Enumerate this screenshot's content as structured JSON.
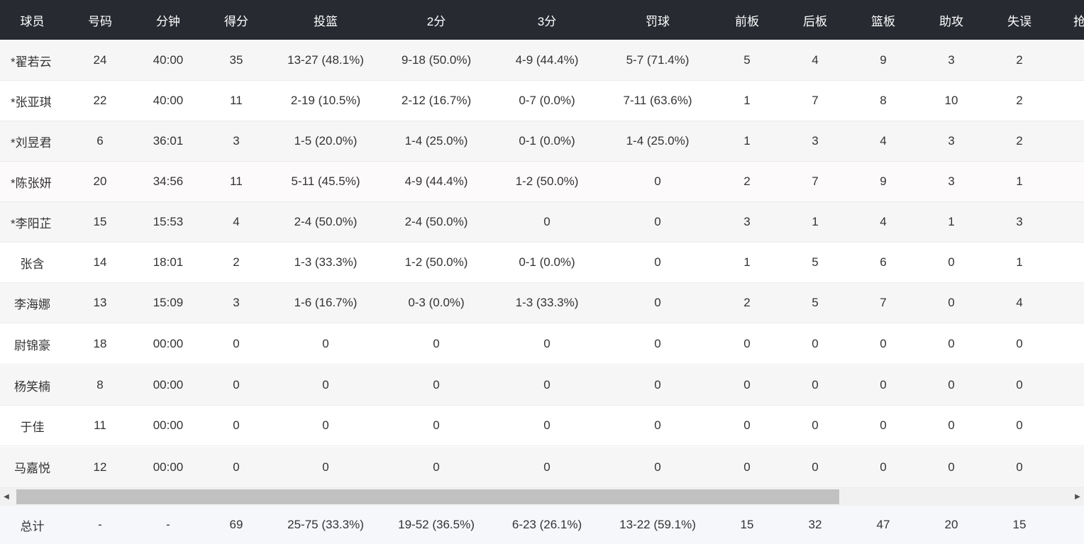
{
  "header": {
    "player": "球员",
    "number": "号码",
    "minutes": "分钟",
    "points": "得分",
    "fg": "投篮",
    "two": "2分",
    "three": "3分",
    "ft": "罚球",
    "oreb": "前板",
    "dreb": "后板",
    "reb": "篮板",
    "ast": "助攻",
    "tov": "失误",
    "extra": "抢"
  },
  "players": [
    {
      "name": "*翟若云",
      "number": "24",
      "minutes": "40:00",
      "points": "35",
      "fg": "13-27 (48.1%)",
      "two": "9-18 (50.0%)",
      "three": "4-9 (44.4%)",
      "ft": "5-7 (71.4%)",
      "oreb": "5",
      "dreb": "4",
      "reb": "9",
      "ast": "3",
      "tov": "2"
    },
    {
      "name": "*张亚琪",
      "number": "22",
      "minutes": "40:00",
      "points": "11",
      "fg": "2-19 (10.5%)",
      "two": "2-12 (16.7%)",
      "three": "0-7 (0.0%)",
      "ft": "7-11 (63.6%)",
      "oreb": "1",
      "dreb": "7",
      "reb": "8",
      "ast": "10",
      "tov": "2"
    },
    {
      "name": "*刘昱君",
      "number": "6",
      "minutes": "36:01",
      "points": "3",
      "fg": "1-5 (20.0%)",
      "two": "1-4 (25.0%)",
      "three": "0-1 (0.0%)",
      "ft": "1-4 (25.0%)",
      "oreb": "1",
      "dreb": "3",
      "reb": "4",
      "ast": "3",
      "tov": "2"
    },
    {
      "name": "*陈张妍",
      "number": "20",
      "minutes": "34:56",
      "points": "11",
      "fg": "5-11 (45.5%)",
      "two": "4-9 (44.4%)",
      "three": "1-2 (50.0%)",
      "ft": "0",
      "oreb": "2",
      "dreb": "7",
      "reb": "9",
      "ast": "3",
      "tov": "1"
    },
    {
      "name": "*李阳芷",
      "number": "15",
      "minutes": "15:53",
      "points": "4",
      "fg": "2-4 (50.0%)",
      "two": "2-4 (50.0%)",
      "three": "0",
      "ft": "0",
      "oreb": "3",
      "dreb": "1",
      "reb": "4",
      "ast": "1",
      "tov": "3"
    },
    {
      "name": "张含",
      "number": "14",
      "minutes": "18:01",
      "points": "2",
      "fg": "1-3 (33.3%)",
      "two": "1-2 (50.0%)",
      "three": "0-1 (0.0%)",
      "ft": "0",
      "oreb": "1",
      "dreb": "5",
      "reb": "6",
      "ast": "0",
      "tov": "1"
    },
    {
      "name": "李海娜",
      "number": "13",
      "minutes": "15:09",
      "points": "3",
      "fg": "1-6 (16.7%)",
      "two": "0-3 (0.0%)",
      "three": "1-3 (33.3%)",
      "ft": "0",
      "oreb": "2",
      "dreb": "5",
      "reb": "7",
      "ast": "0",
      "tov": "4"
    },
    {
      "name": "尉锦豪",
      "number": "18",
      "minutes": "00:00",
      "points": "0",
      "fg": "0",
      "two": "0",
      "three": "0",
      "ft": "0",
      "oreb": "0",
      "dreb": "0",
      "reb": "0",
      "ast": "0",
      "tov": "0"
    },
    {
      "name": "杨笑楠",
      "number": "8",
      "minutes": "00:00",
      "points": "0",
      "fg": "0",
      "two": "0",
      "three": "0",
      "ft": "0",
      "oreb": "0",
      "dreb": "0",
      "reb": "0",
      "ast": "0",
      "tov": "0"
    },
    {
      "name": "于佳",
      "number": "11",
      "minutes": "00:00",
      "points": "0",
      "fg": "0",
      "two": "0",
      "three": "0",
      "ft": "0",
      "oreb": "0",
      "dreb": "0",
      "reb": "0",
      "ast": "0",
      "tov": "0"
    },
    {
      "name": "马嘉悦",
      "number": "12",
      "minutes": "00:00",
      "points": "0",
      "fg": "0",
      "two": "0",
      "three": "0",
      "ft": "0",
      "oreb": "0",
      "dreb": "0",
      "reb": "0",
      "ast": "0",
      "tov": "0"
    }
  ],
  "totals": {
    "name": "总计",
    "number": "-",
    "minutes": "-",
    "points": "69",
    "fg": "25-75 (33.3%)",
    "two": "19-52 (36.5%)",
    "three": "6-23 (26.1%)",
    "ft": "13-22 (59.1%)",
    "oreb": "15",
    "dreb": "32",
    "reb": "47",
    "ast": "20",
    "tov": "15"
  },
  "scrollbar": {
    "left_arrow": "◀",
    "right_arrow": "▶"
  },
  "colors": {
    "header_bg": "#272a31",
    "row_alt_bg": "#f6f6f6",
    "total_bg": "#f5f7fb",
    "scroll_thumb": "#c1c1c1"
  }
}
